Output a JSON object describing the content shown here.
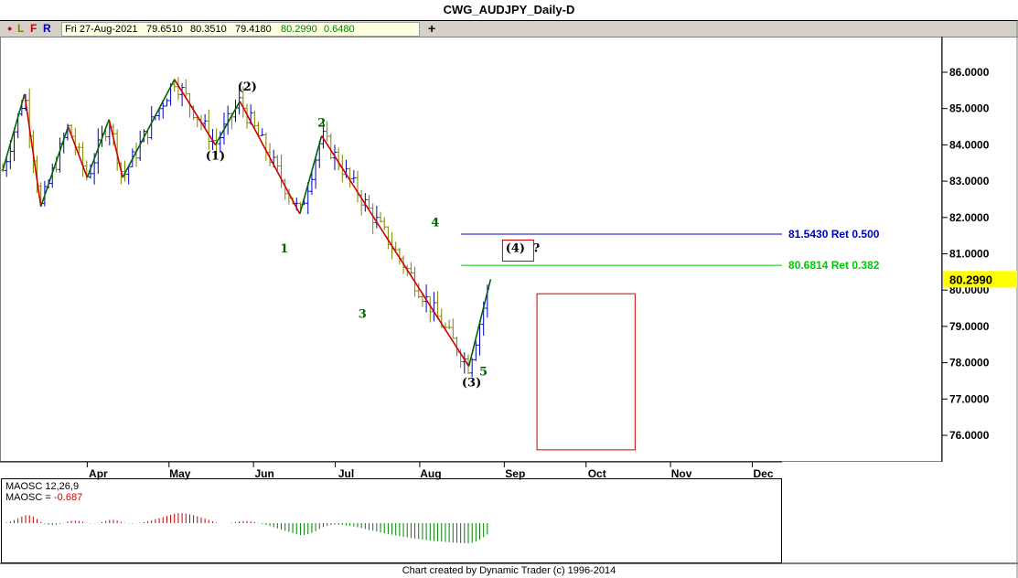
{
  "window": {
    "title": "CWG_AUDJPY_Daily-D"
  },
  "toolbar": {
    "buttons": [
      "L",
      "F",
      "R"
    ],
    "plus": "+",
    "ohlc": {
      "date": "Fri 27-Aug-2021",
      "open": "79.6510",
      "high": "80.3510",
      "low": "79.4180",
      "close": "80.2990",
      "change": "0.6480"
    }
  },
  "colors": {
    "up_bar": "#0000c0",
    "down_bar": "#808000",
    "up_swing": "#006400",
    "down_swing": "#d00000",
    "ret_500": "#0000c0",
    "ret_382": "#00c800",
    "price_tag": "#ffff00",
    "osc_pos": "#008000",
    "osc_neg": "#c00000"
  },
  "chart_data": {
    "type": "line",
    "subtype": "ohlc-with-elliott-wave",
    "title": "CWG_AUDJPY_Daily-D",
    "y_axis": {
      "range": [
        75.3,
        86.7
      ],
      "ticks": [
        "86.0000",
        "85.0000",
        "84.0000",
        "83.0000",
        "82.0000",
        "81.0000",
        "80.0000",
        "79.0000",
        "78.0000",
        "77.0000",
        "76.0000"
      ]
    },
    "x_axis": {
      "months": [
        "Apr",
        "May",
        "Jun",
        "Jul",
        "Aug",
        "Sep",
        "Oct",
        "Nov",
        "Dec"
      ]
    },
    "last_price": "80.2990",
    "wave_path": [
      {
        "d": "2021-03-01",
        "v": 83.3
      },
      {
        "d": "2021-03-09",
        "v": 85.4
      },
      {
        "d": "2021-03-15",
        "v": 82.3
      },
      {
        "d": "2021-03-25",
        "v": 84.5
      },
      {
        "d": "2021-04-01",
        "v": 83.1
      },
      {
        "d": "2021-04-09",
        "v": 84.7
      },
      {
        "d": "2021-04-14",
        "v": 83.1
      },
      {
        "d": "2021-05-03",
        "v": 85.8
      },
      {
        "d": "2021-05-18",
        "v": 84.0
      },
      {
        "d": "2021-05-27",
        "v": 85.2
      },
      {
        "d": "2021-06-18",
        "v": 82.1
      },
      {
        "d": "2021-06-26",
        "v": 84.25
      },
      {
        "d": "2021-08-19",
        "v": 77.9
      },
      {
        "d": "2021-08-27",
        "v": 80.3
      }
    ],
    "price_levels": [
      {
        "value": "81.5430",
        "label": "81.5430 Ret 0.500"
      },
      {
        "value": "80.6814",
        "label": "80.6814 Ret 0.382"
      }
    ],
    "wave_labels": [
      {
        "text": "(1)",
        "d": "2021-05-18",
        "v": 84.0
      },
      {
        "text": "(2)",
        "d": "2021-05-27",
        "v": 85.2
      },
      {
        "text": "(3)",
        "d": "2021-08-19",
        "v": 77.9
      },
      {
        "text": "(4)",
        "d": "2021-08-28",
        "v": 81.0
      },
      {
        "text": "?",
        "d": "2021-08-28",
        "v": 81.0
      },
      {
        "text": "1",
        "d": "2021-06-18",
        "v": 82.1
      },
      {
        "text": "2",
        "d": "2021-06-26",
        "v": 84.25
      },
      {
        "text": "3",
        "d": "2021-07-16",
        "v": 80.2
      },
      {
        "text": "4",
        "d": "2021-08-08",
        "v": 81.5
      },
      {
        "text": "5",
        "d": "2021-08-19",
        "v": 77.9
      }
    ],
    "target_box": {
      "d_from": "2021-09-13",
      "d_to": "2021-10-19",
      "v_from": 75.6,
      "v_to": 79.9
    },
    "oscillator": {
      "name": "MAOSC 12,26,9",
      "label": "MAOSC =",
      "value": "-0.687"
    }
  },
  "footer": {
    "credit": "Chart created by Dynamic Trader  (c) 1996-2014"
  }
}
